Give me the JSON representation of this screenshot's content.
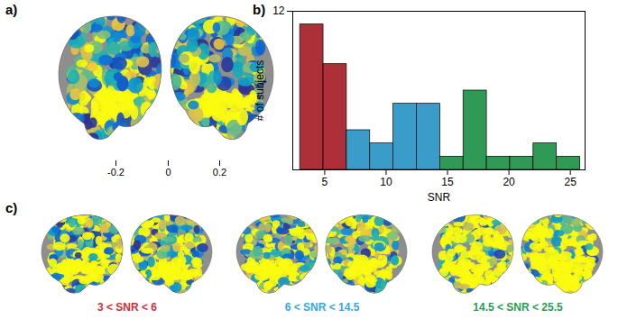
{
  "chart_data": [
    {
      "type": "brain_map",
      "title": "a)",
      "colorbar": {
        "range": [
          -0.2,
          0.2
        ],
        "ticks": [
          -0.2,
          0,
          0.2
        ]
      }
    },
    {
      "type": "histogram",
      "title": "b)",
      "xlabel": "SNR",
      "ylabel": "# of subjects",
      "bins": [
        3.0,
        4.9,
        6.8,
        8.7,
        10.6,
        12.5,
        14.4,
        16.3,
        18.2,
        20.1,
        22.0,
        23.9,
        25.8
      ],
      "values": [
        11,
        8,
        3,
        2,
        5,
        5,
        1,
        6,
        1,
        1,
        2,
        1
      ],
      "colors": [
        "#ad2f37",
        "#ad2f37",
        "#3a9cc8",
        "#3a9cc8",
        "#3a9cc8",
        "#3a9cc8",
        "#2f9a55",
        "#2f9a55",
        "#2f9a55",
        "#2f9a55",
        "#2f9a55",
        "#2f9a55"
      ],
      "xlim": [
        2.4,
        26.2
      ],
      "xticks": [
        5,
        10,
        15,
        20,
        25
      ],
      "ylim": [
        0,
        12
      ],
      "yticks": [
        12
      ]
    },
    {
      "type": "brain_map",
      "title": "c)",
      "groups": [
        {
          "label": "3 < SNR < 6",
          "color": "#d0303a"
        },
        {
          "label": "6 < SNR < 14.5",
          "color": "#35a9dc"
        },
        {
          "label": "14.5 < SNR < 25.5",
          "color": "#2a9d52"
        }
      ]
    }
  ]
}
